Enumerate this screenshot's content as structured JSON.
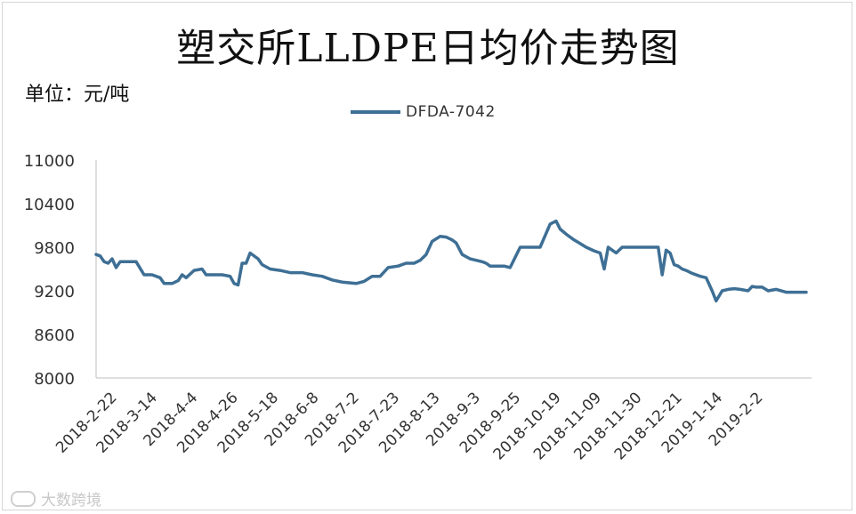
{
  "chart_data": {
    "type": "line",
    "title": "塑交所LLDPE日均价走势图",
    "unit_label": "单位：元/吨",
    "ylim": [
      8000,
      11000
    ],
    "yticks": [
      8000,
      8600,
      9200,
      9800,
      10400,
      11000
    ],
    "xtick_labels": [
      "2018-2-22",
      "2018-3-14",
      "2018-4-4",
      "2018-4-26",
      "2018-5-18",
      "2018-6-8",
      "2018-7-2",
      "2018-7-23",
      "2018-8-13",
      "2018-9-3",
      "2018-9-25",
      "2018-10-19",
      "2018-11-09",
      "2018-11-30",
      "2018-12-21",
      "2019-1-14",
      "2019-2-2"
    ],
    "grid": false,
    "legend_position": "top-center",
    "series": [
      {
        "name": "DFDA-7042",
        "color": "#3e6f95",
        "x": [
          "2018-2-22",
          "2018-2-24",
          "2018-2-26",
          "2018-2-28",
          "2018-3-2",
          "2018-3-4",
          "2018-3-6",
          "2018-3-8",
          "2018-3-10",
          "2018-3-12",
          "2018-3-14",
          "2018-3-18",
          "2018-3-22",
          "2018-3-26",
          "2018-3-28",
          "2018-4-1",
          "2018-4-4",
          "2018-4-6",
          "2018-4-8",
          "2018-4-12",
          "2018-4-16",
          "2018-4-18",
          "2018-4-20",
          "2018-4-22",
          "2018-4-26",
          "2018-4-30",
          "2018-5-2",
          "2018-5-4",
          "2018-5-6",
          "2018-5-8",
          "2018-5-10",
          "2018-5-14",
          "2018-5-16",
          "2018-5-20",
          "2018-5-25",
          "2018-5-30",
          "2018-6-5",
          "2018-6-10",
          "2018-6-15",
          "2018-6-20",
          "2018-6-25",
          "2018-7-2",
          "2018-7-6",
          "2018-7-10",
          "2018-7-14",
          "2018-7-18",
          "2018-7-23",
          "2018-7-27",
          "2018-7-31",
          "2018-8-3",
          "2018-8-6",
          "2018-8-9",
          "2018-8-13",
          "2018-8-16",
          "2018-8-19",
          "2018-8-21",
          "2018-8-24",
          "2018-8-28",
          "2018-9-3",
          "2018-9-5",
          "2018-9-7",
          "2018-9-10",
          "2018-9-14",
          "2018-9-17",
          "2018-9-22",
          "2018-9-27",
          "2018-10-2",
          "2018-10-7",
          "2018-10-10",
          "2018-10-12",
          "2018-10-15",
          "2018-10-17",
          "2018-10-19",
          "2018-10-22",
          "2018-10-25",
          "2018-10-29",
          "2018-11-1",
          "2018-11-3",
          "2018-11-5",
          "2018-11-7",
          "2018-11-9",
          "2018-11-12",
          "2018-11-16",
          "2018-11-20",
          "2018-11-25",
          "2018-11-30",
          "2018-12-2",
          "2018-12-4",
          "2018-12-6",
          "2018-12-8",
          "2018-12-10",
          "2018-12-12",
          "2018-12-14",
          "2018-12-17",
          "2018-12-21",
          "2018-12-24",
          "2018-12-27",
          "2018-12-29",
          "2019-1-1",
          "2019-1-4",
          "2019-1-7",
          "2019-1-10",
          "2019-1-14",
          "2019-1-16",
          "2019-1-18",
          "2019-1-21",
          "2019-1-24",
          "2019-1-28",
          "2019-2-2",
          "2019-2-6",
          "2019-2-12"
        ],
        "values": [
          9700,
          9680,
          9600,
          9580,
          9640,
          9520,
          9600,
          9600,
          9600,
          9600,
          9600,
          9420,
          9420,
          9380,
          9300,
          9300,
          9340,
          9420,
          9380,
          9480,
          9500,
          9420,
          9420,
          9420,
          9420,
          9400,
          9300,
          9280,
          9580,
          9580,
          9720,
          9640,
          9560,
          9500,
          9480,
          9450,
          9450,
          9420,
          9400,
          9350,
          9320,
          9300,
          9330,
          9400,
          9400,
          9520,
          9540,
          9580,
          9580,
          9620,
          9700,
          9880,
          9950,
          9940,
          9900,
          9860,
          9700,
          9640,
          9600,
          9580,
          9540,
          9540,
          9540,
          9520,
          9800,
          9800,
          9800,
          10120,
          10160,
          10050,
          9980,
          9940,
          9900,
          9850,
          9800,
          9750,
          9720,
          9500,
          9800,
          9760,
          9720,
          9800,
          9800,
          9800,
          9800,
          9800,
          9420,
          9760,
          9720,
          9560,
          9540,
          9500,
          9480,
          9440,
          9400,
          9380,
          9200,
          9060,
          9200,
          9220,
          9230,
          9220,
          9200,
          9260,
          9250,
          9250,
          9200,
          9220,
          9180,
          9180,
          9180
        ]
      }
    ]
  },
  "watermark": "大数跨境"
}
